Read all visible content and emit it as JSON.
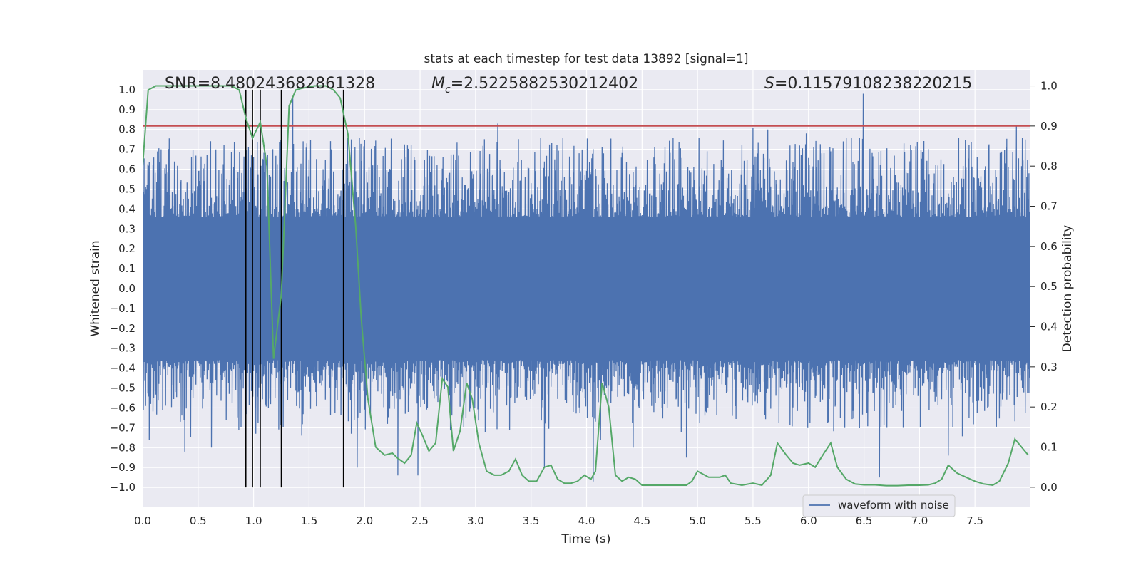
{
  "chart_data": {
    "type": "line",
    "title": "stats at each timestep for test data 13892 [signal=1]",
    "xlabel": "Time (s)",
    "ylabel_left": "Whitened strain",
    "ylabel_right": "Detection probability",
    "xlim": [
      0.0,
      8.0
    ],
    "ylim_left": [
      -1.1,
      1.1
    ],
    "ylim_right": [
      -0.05,
      1.04
    ],
    "xticks": [
      "0.0",
      "0.5",
      "1.0",
      "1.5",
      "2.0",
      "2.5",
      "3.0",
      "3.5",
      "4.0",
      "4.5",
      "5.0",
      "5.5",
      "6.0",
      "6.5",
      "7.0",
      "7.5"
    ],
    "yticks_left": [
      "1.0",
      "0.9",
      "0.8",
      "0.7",
      "0.6",
      "0.5",
      "0.4",
      "0.3",
      "0.2",
      "0.1",
      "0.0",
      "−0.1",
      "−0.2",
      "−0.3",
      "−0.4",
      "−0.5",
      "−0.6",
      "−0.7",
      "−0.8",
      "−0.9",
      "−1.0"
    ],
    "yticks_right": [
      "1.0",
      "0.9",
      "0.8",
      "0.7",
      "0.6",
      "0.5",
      "0.4",
      "0.3",
      "0.2",
      "0.1",
      "0.0"
    ],
    "annotations": {
      "snr": "SNR=8.480243682861328",
      "mc_symbol": "M",
      "mc_sub": "c",
      "mc_value": "=2.5225882530212402",
      "s_symbol": "S",
      "s_value": "=0.11579108238220215"
    },
    "legend": {
      "label": "waveform with noise",
      "position": "lower-right"
    },
    "threshold": {
      "value": 0.9,
      "axis": "right",
      "color": "#c44e52"
    },
    "vertical_lines_x": [
      0.93,
      0.99,
      1.06,
      1.25,
      1.81
    ],
    "waveform": {
      "name": "waveform with noise",
      "color": "#4c72b0",
      "band": 0.36,
      "seed": 13892,
      "n": 1200,
      "spikes": [
        [
          0.06,
          -0.76
        ],
        [
          0.38,
          -0.82
        ],
        [
          0.62,
          -0.8
        ],
        [
          0.82,
          0.61
        ],
        [
          1.0,
          0.66
        ],
        [
          1.35,
          0.96
        ],
        [
          1.7,
          0.7
        ],
        [
          1.88,
          -0.73
        ],
        [
          1.93,
          -0.9
        ],
        [
          2.3,
          -0.94
        ],
        [
          2.48,
          -0.94
        ],
        [
          3.2,
          0.83
        ],
        [
          3.62,
          -0.9
        ],
        [
          4.06,
          -0.97
        ],
        [
          4.42,
          -0.8
        ],
        [
          4.9,
          -0.85
        ],
        [
          5.5,
          0.81
        ],
        [
          5.63,
          0.8
        ],
        [
          5.98,
          0.78
        ],
        [
          6.49,
          0.98
        ],
        [
          6.64,
          -0.95
        ],
        [
          7.26,
          -0.84
        ],
        [
          7.87,
          0.82
        ],
        [
          7.95,
          0.75
        ]
      ]
    },
    "probability": {
      "name": "detection probability",
      "color": "#55a868",
      "x": [
        0.0,
        0.05,
        0.12,
        0.2,
        0.3,
        0.4,
        0.5,
        0.6,
        0.7,
        0.8,
        0.87,
        0.93,
        0.99,
        1.06,
        1.12,
        1.18,
        1.25,
        1.32,
        1.38,
        1.45,
        1.55,
        1.65,
        1.72,
        1.78,
        1.85,
        1.92,
        1.97,
        2.03,
        2.1,
        2.18,
        2.25,
        2.3,
        2.36,
        2.42,
        2.47,
        2.52,
        2.58,
        2.64,
        2.7,
        2.75,
        2.8,
        2.86,
        2.92,
        2.97,
        3.03,
        3.1,
        3.17,
        3.23,
        3.3,
        3.36,
        3.42,
        3.48,
        3.55,
        3.62,
        3.68,
        3.74,
        3.8,
        3.86,
        3.92,
        3.98,
        4.04,
        4.08,
        4.14,
        4.2,
        4.26,
        4.32,
        4.38,
        4.44,
        4.5,
        4.6,
        4.7,
        4.8,
        4.9,
        4.95,
        5.0,
        5.1,
        5.2,
        5.25,
        5.3,
        5.4,
        5.5,
        5.58,
        5.66,
        5.72,
        5.8,
        5.86,
        5.92,
        6.0,
        6.06,
        6.14,
        6.2,
        6.26,
        6.34,
        6.42,
        6.5,
        6.6,
        6.7,
        6.8,
        6.9,
        7.0,
        7.08,
        7.14,
        7.2,
        7.26,
        7.34,
        7.42,
        7.5,
        7.58,
        7.66,
        7.72,
        7.8,
        7.86,
        7.92,
        7.98
      ],
      "y": [
        0.8,
        0.99,
        1.0,
        1.0,
        1.0,
        1.0,
        1.0,
        1.0,
        1.0,
        1.0,
        0.99,
        0.92,
        0.87,
        0.91,
        0.8,
        0.32,
        0.48,
        0.95,
        0.99,
        0.995,
        1.0,
        1.0,
        0.99,
        0.97,
        0.88,
        0.65,
        0.42,
        0.22,
        0.1,
        0.08,
        0.085,
        0.072,
        0.06,
        0.08,
        0.16,
        0.13,
        0.09,
        0.11,
        0.27,
        0.25,
        0.09,
        0.14,
        0.26,
        0.22,
        0.11,
        0.04,
        0.03,
        0.03,
        0.04,
        0.07,
        0.03,
        0.015,
        0.015,
        0.05,
        0.055,
        0.02,
        0.01,
        0.01,
        0.015,
        0.03,
        0.02,
        0.04,
        0.26,
        0.2,
        0.03,
        0.015,
        0.025,
        0.02,
        0.005,
        0.005,
        0.005,
        0.005,
        0.005,
        0.015,
        0.04,
        0.025,
        0.025,
        0.03,
        0.01,
        0.005,
        0.01,
        0.005,
        0.03,
        0.11,
        0.08,
        0.06,
        0.055,
        0.06,
        0.05,
        0.085,
        0.11,
        0.05,
        0.02,
        0.008,
        0.006,
        0.006,
        0.004,
        0.004,
        0.005,
        0.005,
        0.006,
        0.01,
        0.02,
        0.055,
        0.035,
        0.025,
        0.015,
        0.008,
        0.005,
        0.015,
        0.06,
        0.12,
        0.1,
        0.08
      ]
    }
  }
}
